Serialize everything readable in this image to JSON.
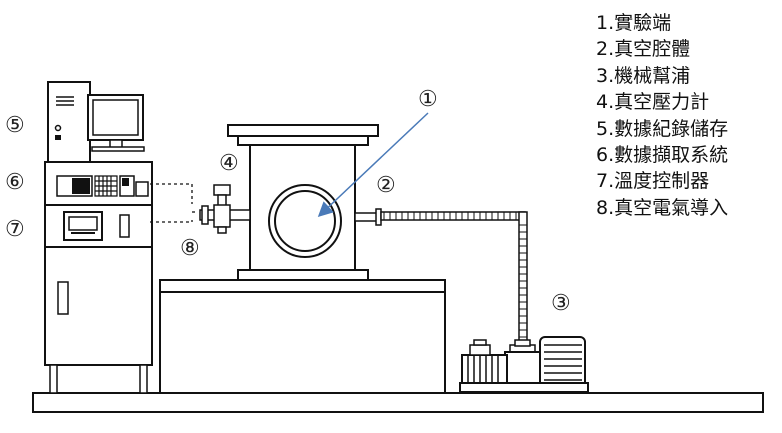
{
  "markers": [
    "①",
    "②",
    "③",
    "④",
    "⑤",
    "⑥",
    "⑦",
    "⑧"
  ],
  "legend": [
    "1.實驗端",
    "2.真空腔體",
    "3.機械幫浦",
    "4.真空壓力計",
    "5.數據紀錄儲存",
    "6.數據擷取系統",
    "7.溫度控制器",
    "8.真空電氣導入"
  ],
  "colors": {
    "line": "#111111",
    "arrow": "#4a7ab8",
    "fill": "#ffffff"
  }
}
